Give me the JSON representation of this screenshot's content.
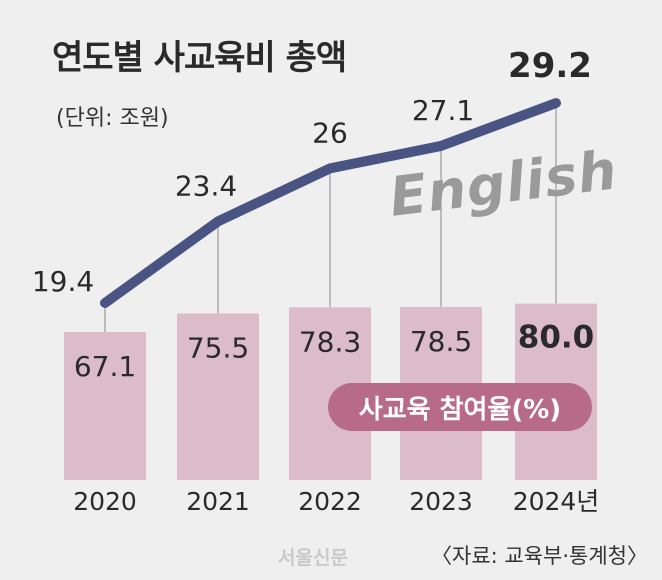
{
  "title": "연도별 사교육비 총액",
  "unit": "(단위: 조원)",
  "legend_label": "사교육 참여율(%)",
  "watermark_word": "English",
  "credit": "〈자료: 교육부·통계청〉",
  "publisher_watermark": "서울신문",
  "colors": {
    "line": "#4a5483",
    "bar": "#dcbcc9",
    "legend_pill": "#b86b88",
    "background": "#efefef"
  },
  "chart_data": [
    {
      "type": "line",
      "title": "연도별 사교육비 총액",
      "unit": "조원",
      "categories": [
        "2020",
        "2021",
        "2022",
        "2023",
        "2024년"
      ],
      "values": [
        19.4,
        23.4,
        26,
        27.1,
        29.2
      ],
      "labels": [
        "19.4",
        "23.4",
        "26",
        "27.1",
        "29.2"
      ]
    },
    {
      "type": "bar",
      "title": "사교육 참여율(%)",
      "unit": "%",
      "categories": [
        "2020",
        "2021",
        "2022",
        "2023",
        "2024년"
      ],
      "values": [
        67.1,
        75.5,
        78.3,
        78.5,
        80.0
      ],
      "labels": [
        "67.1",
        "75.5",
        "78.3",
        "78.5",
        "80.0"
      ]
    }
  ]
}
